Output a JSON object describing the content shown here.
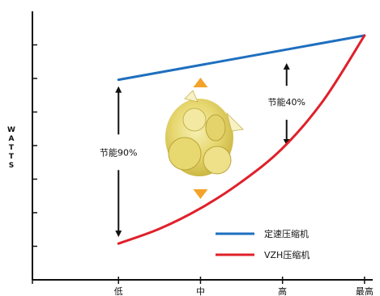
{
  "chart_data": {
    "type": "line",
    "title": "",
    "ylabel": "WATTS",
    "xlabel": "",
    "categories": [
      "低",
      "中",
      "高",
      "最高"
    ],
    "series": [
      {
        "name": "定速压缩机",
        "color": "#1f6fbf",
        "x": [
          0,
          3
        ],
        "y": [
          5.96,
          7.28
        ]
      },
      {
        "name": "VZH压缩机",
        "color": "#e0202a",
        "x": [
          0,
          0.5,
          1,
          1.5,
          2,
          2.5,
          3
        ],
        "y": [
          1.08,
          1.52,
          2.13,
          2.92,
          3.92,
          5.35,
          7.28
        ]
      }
    ],
    "xlim": [
      -1.05,
      3.1
    ],
    "ylim": [
      0,
      8
    ],
    "y_ticks": 7,
    "annotations": [
      {
        "text": "节能90%",
        "x": 0,
        "y": 3.8
      },
      {
        "text": "节能40%",
        "x": 2.05,
        "y": 5.3
      }
    ],
    "legend_position": "bottom-right",
    "grid": false,
    "accent_arrow_color": "#f4a32a"
  }
}
